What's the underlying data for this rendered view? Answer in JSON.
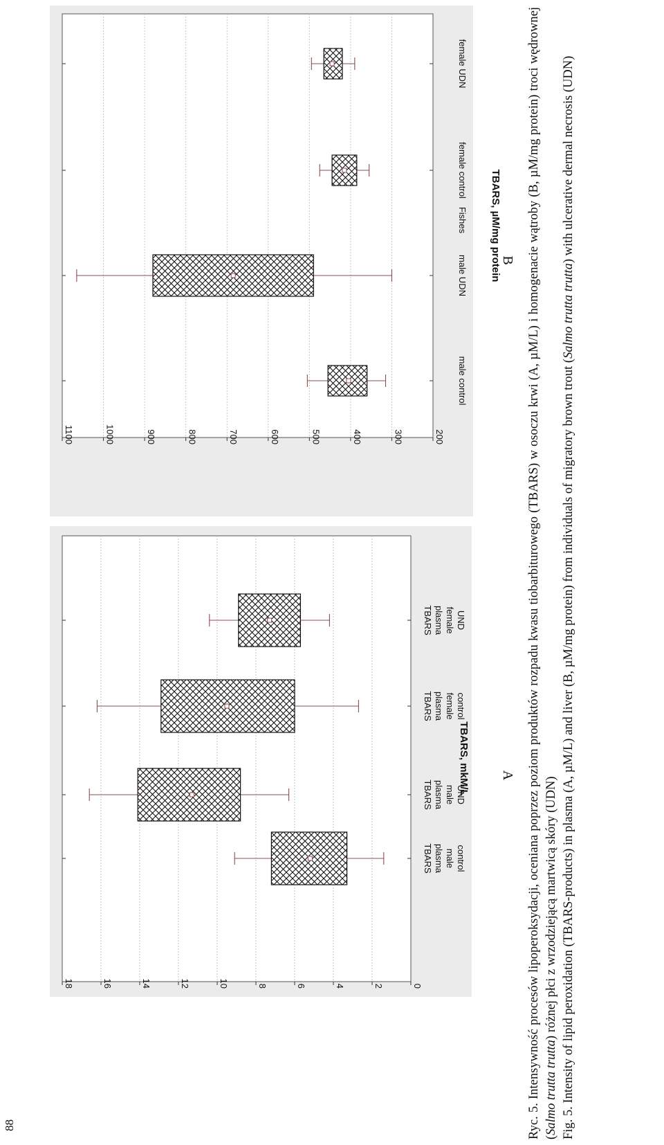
{
  "page_number": "88",
  "caption": {
    "polish_parts": [
      "Ryc. 5. Intensywność procesów lipoperoksydacji, oceniana poprzez poziom produktów rozpadu kwasu tiobarbiturowego (TBARS) w osoczu krwi (A, µM/L) i homogenacie wątroby (B, µM/mg protein) troci wędrownej (",
      "Salmo trutta trutta",
      ") różnej płci z wrzodziejącą martwicą skóry (UDN)"
    ],
    "english_parts": [
      "Fig. 5. Intensity of lipid peroxidation (TBARS-products) in plasma (A, µM/L) and liver (B, µM/mg protein) from individuals of migratory brown trout (",
      "Salmo trutta trutta",
      ") with ulcerative dermal necrosis (UDN)"
    ]
  },
  "chart_data": [
    {
      "type": "box",
      "panel_label": "A",
      "ylabel": "TBARS, mkM/L",
      "xlabel": "",
      "ylim": [
        0,
        18
      ],
      "yticks": [
        0,
        2,
        4,
        6,
        8,
        10,
        12,
        14,
        16,
        18
      ],
      "grid": true,
      "categories": [
        [
          "TBARS",
          "plasma",
          "male",
          "control"
        ],
        [
          "TBARS",
          "plasma",
          "male",
          "UND"
        ],
        [
          "TBARS",
          "plasma",
          "female",
          "control"
        ],
        [
          "TBARS",
          "plasma",
          "female",
          "UND"
        ]
      ],
      "boxes": [
        {
          "whisker_low": 1.4,
          "q1": 3.3,
          "median": 5.2,
          "q3": 7.2,
          "whisker_high": 9.1
        },
        {
          "whisker_low": 6.3,
          "q1": 8.8,
          "median": 11.3,
          "q3": 14.1,
          "whisker_high": 16.6
        },
        {
          "whisker_low": 2.7,
          "q1": 6.0,
          "median": 9.5,
          "q3": 12.9,
          "whisker_high": 16.2
        },
        {
          "whisker_low": 4.2,
          "q1": 5.7,
          "median": 7.3,
          "q3": 8.9,
          "whisker_high": 10.4
        }
      ]
    },
    {
      "type": "box",
      "panel_label": "B",
      "ylabel": "TBARS, µM/mg protein",
      "xlabel": "Fishes",
      "ylim": [
        200,
        1100
      ],
      "yticks": [
        200,
        300,
        400,
        500,
        600,
        700,
        800,
        900,
        1000,
        1100
      ],
      "grid": true,
      "categories": [
        [
          "male control"
        ],
        [
          "male UDN"
        ],
        [
          "female control"
        ],
        [
          "female UDN"
        ]
      ],
      "boxes": [
        {
          "whisker_low": 315,
          "q1": 360,
          "median": 405,
          "q3": 455,
          "whisker_high": 505
        },
        {
          "whisker_low": 300,
          "q1": 490,
          "median": 685,
          "q3": 880,
          "whisker_high": 1065
        },
        {
          "whisker_low": 355,
          "q1": 385,
          "median": 415,
          "q3": 445,
          "whisker_high": 475
        },
        {
          "whisker_low": 390,
          "q1": 420,
          "median": 445,
          "q3": 465,
          "whisker_high": 495
        }
      ]
    }
  ],
  "colors": {
    "panel_background": "#ebebeb",
    "plot_background": "#ffffff",
    "box_hatch": "#111111",
    "whisker": "#8a4d4d",
    "grid": "#bbbbbb"
  }
}
